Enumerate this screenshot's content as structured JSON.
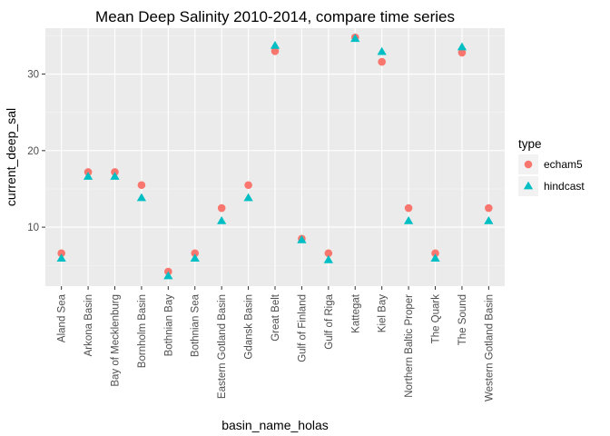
{
  "chart_data": {
    "type": "scatter",
    "title": "Mean Deep Salinity 2010-2014, compare time series",
    "xlabel": "basin_name_holas",
    "ylabel": "current_deep_sal",
    "categories": [
      "Aland Sea",
      "Arkona Basin",
      "Bay of Mecklenburg",
      "Bornholm Basin",
      "Bothnian Bay",
      "Bothnian Sea",
      "Eastern Gotland Basin",
      "Gdansk Basin",
      "Great Belt",
      "Gulf of Finland",
      "Gulf of Riga",
      "Kattegat",
      "Kiel Bay",
      "Northern Baltic Proper",
      "The Quark",
      "The Sound",
      "Western Gotland Basin"
    ],
    "ylim": [
      2.3,
      36
    ],
    "yticks": [
      10,
      20,
      30
    ],
    "grid": true,
    "legend": {
      "title": "type",
      "position": "right"
    },
    "series": [
      {
        "name": "echam5",
        "shape": "circle",
        "color": "#F8766D",
        "values": [
          6.6,
          17.2,
          17.2,
          15.5,
          4.2,
          6.6,
          12.5,
          15.5,
          33.0,
          8.5,
          6.6,
          34.8,
          31.6,
          12.5,
          6.6,
          32.8,
          12.5
        ]
      },
      {
        "name": "hindcast",
        "shape": "triangle",
        "color": "#00BFC4",
        "values": [
          5.9,
          16.6,
          16.6,
          13.8,
          3.6,
          5.9,
          10.8,
          13.8,
          33.7,
          8.3,
          5.7,
          34.6,
          32.9,
          10.8,
          5.9,
          33.5,
          10.8
        ]
      }
    ]
  }
}
